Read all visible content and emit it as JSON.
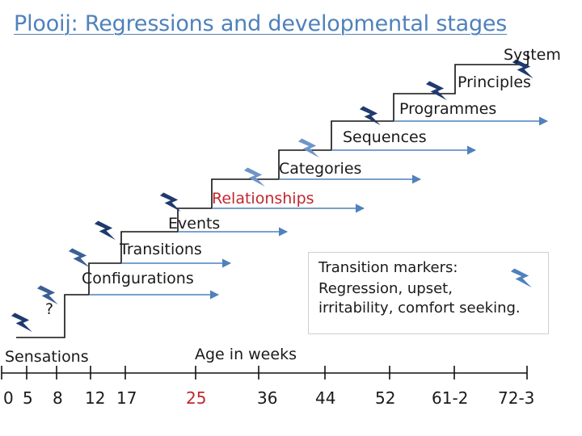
{
  "title": "Plooij: Regressions and developmental stages",
  "stages": [
    {
      "label": "Sensations",
      "color": "#1a1a1a"
    },
    {
      "label": "?",
      "color": "#1a1a1a"
    },
    {
      "label": "Configurations",
      "color": "#1a1a1a"
    },
    {
      "label": "Transitions",
      "color": "#1a1a1a"
    },
    {
      "label": "Events",
      "color": "#1a1a1a"
    },
    {
      "label": "Relationships",
      "color": "#c0272d"
    },
    {
      "label": "Categories",
      "color": "#1a1a1a"
    },
    {
      "label": "Sequences",
      "color": "#1a1a1a"
    },
    {
      "label": "Programmes",
      "color": "#1a1a1a"
    },
    {
      "label": "Principles",
      "color": "#1a1a1a"
    },
    {
      "label": "System",
      "color": "#1a1a1a"
    }
  ],
  "axis": {
    "title": "Age in weeks",
    "ticks": [
      "0",
      "5",
      "8",
      "12",
      "17",
      "25",
      "36",
      "44",
      "52",
      "61-2",
      "72-3"
    ],
    "highlight_tick": "25",
    "highlight_color": "#c0272d"
  },
  "legend": {
    "line1": "Transition markers:",
    "line2": "Regression, upset,",
    "line3": "irritability, comfort seeking.",
    "icon": "storm-icon"
  },
  "colors": {
    "title": "#4f81bd",
    "arrow": "#4f81bd",
    "storm_dark": "#1f3a6e",
    "storm_light": "#6f95c8",
    "stair": "#111111"
  }
}
